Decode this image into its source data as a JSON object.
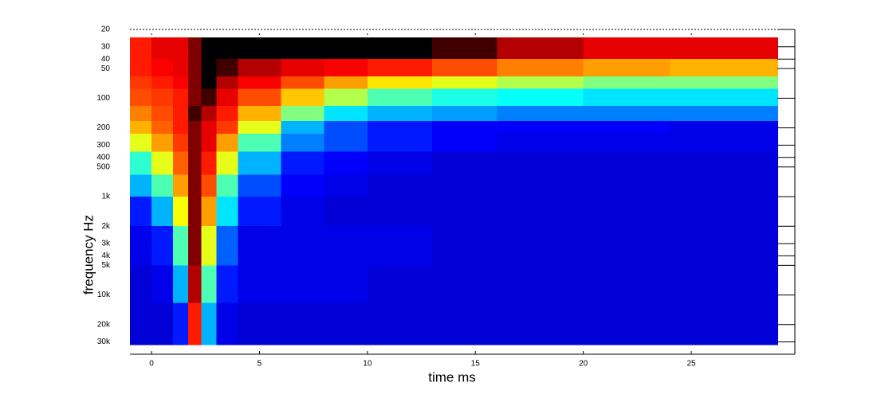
{
  "chart_data": {
    "type": "heatmap",
    "x_label": "time   ms",
    "y_label": "frequency   Hz",
    "y_scale": "log",
    "xlim": [
      -1,
      29.8
    ],
    "ylim": [
      20,
      40000
    ],
    "xticks": [
      0,
      5,
      10,
      15,
      20,
      25
    ],
    "yticks": [
      20,
      30,
      40,
      50,
      100,
      200,
      300,
      400,
      500,
      {
        "value": 1000,
        "label": "1k"
      },
      {
        "value": 2000,
        "label": "2k"
      },
      {
        "value": 3000,
        "label": "3k"
      },
      {
        "value": 4000,
        "label": "4k"
      },
      {
        "value": 5000,
        "label": "5k"
      },
      {
        "value": 10000,
        "label": "10k"
      },
      {
        "value": 20000,
        "label": "20k"
      },
      {
        "value": 30000,
        "label": "30k"
      }
    ],
    "x_bins": [
      -1,
      0,
      1,
      1.7,
      2.3,
      3,
      4,
      6,
      8,
      10,
      13,
      16,
      20,
      24,
      29
    ],
    "y_bins": [
      24,
      40,
      60,
      80,
      120,
      170,
      230,
      350,
      600,
      1000,
      2000,
      5000,
      12000,
      32000
    ],
    "zlim": [
      0,
      1.1
    ],
    "colormap": [
      [
        0,
        "#00008f"
      ],
      [
        0.125,
        "#0000ff"
      ],
      [
        0.375,
        "#00ffff"
      ],
      [
        0.625,
        "#ffff00"
      ],
      [
        0.875,
        "#ff0000"
      ],
      [
        1,
        "#800000"
      ],
      [
        1.1,
        "#000000"
      ]
    ],
    "z": [
      [
        0.85,
        0.9,
        0.9,
        1.0,
        1.1,
        1.1,
        1.1,
        1.1,
        1.1,
        1.1,
        1.05,
        0.95,
        0.9,
        0.9
      ],
      [
        0.85,
        0.88,
        0.9,
        1.0,
        1.1,
        1.05,
        0.95,
        0.9,
        0.88,
        0.85,
        0.8,
        0.75,
        0.72,
        0.7
      ],
      [
        0.82,
        0.85,
        0.88,
        1.0,
        1.1,
        0.95,
        0.88,
        0.8,
        0.72,
        0.65,
        0.6,
        0.55,
        0.5,
        0.5
      ],
      [
        0.8,
        0.82,
        0.85,
        1.0,
        1.05,
        0.9,
        0.8,
        0.68,
        0.55,
        0.45,
        0.4,
        0.38,
        0.35,
        0.35
      ],
      [
        0.75,
        0.8,
        0.85,
        1.05,
        0.95,
        0.85,
        0.7,
        0.5,
        0.35,
        0.3,
        0.28,
        0.25,
        0.25,
        0.25
      ],
      [
        0.7,
        0.78,
        0.85,
        1.0,
        0.9,
        0.82,
        0.6,
        0.3,
        0.2,
        0.15,
        0.12,
        0.12,
        0.12,
        0.1
      ],
      [
        0.6,
        0.72,
        0.82,
        1.0,
        0.9,
        0.72,
        0.45,
        0.25,
        0.2,
        0.15,
        0.12,
        0.1,
        0.1,
        0.1
      ],
      [
        0.42,
        0.6,
        0.78,
        1.0,
        0.85,
        0.6,
        0.3,
        0.15,
        0.12,
        0.1,
        0.08,
        0.08,
        0.08,
        0.08
      ],
      [
        0.3,
        0.45,
        0.72,
        1.0,
        0.8,
        0.45,
        0.2,
        0.12,
        0.1,
        0.08,
        0.08,
        0.08,
        0.08,
        0.08
      ],
      [
        0.15,
        0.3,
        0.62,
        1.0,
        0.72,
        0.35,
        0.15,
        0.1,
        0.08,
        0.08,
        0.08,
        0.08,
        0.08,
        0.08
      ],
      [
        0.1,
        0.15,
        0.45,
        1.0,
        0.6,
        0.22,
        0.1,
        0.1,
        0.1,
        0.1,
        0.08,
        0.08,
        0.08,
        0.08
      ],
      [
        0.08,
        0.1,
        0.3,
        0.95,
        0.45,
        0.15,
        0.1,
        0.1,
        0.1,
        0.08,
        0.08,
        0.08,
        0.08,
        0.08
      ],
      [
        0.08,
        0.08,
        0.15,
        0.85,
        0.3,
        0.1,
        0.08,
        0.08,
        0.08,
        0.08,
        0.08,
        0.08,
        0.08,
        0.08
      ]
    ]
  }
}
